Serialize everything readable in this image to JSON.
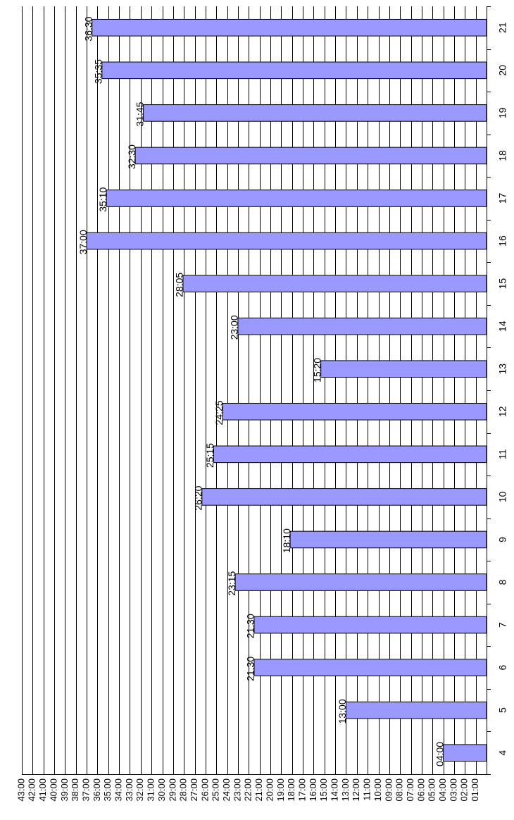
{
  "chart_data": {
    "type": "bar",
    "orientation": "vertical, page rotated 90 degrees clockwise",
    "title": "",
    "xlabel": "",
    "ylabel": "",
    "categories": [
      "4",
      "5",
      "6",
      "7",
      "8",
      "9",
      "10",
      "11",
      "12",
      "13",
      "14",
      "15",
      "16",
      "17",
      "18",
      "19",
      "20",
      "21"
    ],
    "values": [
      4.0,
      13.0,
      21.5,
      21.5,
      23.25,
      18.17,
      26.33,
      25.25,
      24.42,
      15.33,
      23.0,
      28.08,
      37.0,
      35.17,
      32.5,
      31.75,
      35.58,
      36.5
    ],
    "data_labels": [
      "04:00",
      "13:00",
      "21:30",
      "21:30",
      "23:15",
      "18:10",
      "26:20",
      "25:15",
      "24:25",
      "15:20",
      "23:00",
      "28:05",
      "37:00",
      "35:10",
      "32:30",
      "31:45",
      "35:35",
      "36:30"
    ],
    "y_ticks": [
      "01:00",
      "02:00",
      "03:00",
      "04:00",
      "05:00",
      "06:00",
      "07:00",
      "08:00",
      "09:00",
      "10:00",
      "11:00",
      "12:00",
      "13:00",
      "14:00",
      "15:00",
      "16:00",
      "17:00",
      "18:00",
      "19:00",
      "20:00",
      "21:00",
      "22:00",
      "23:00",
      "24:00",
      "25:00",
      "26:00",
      "27:00",
      "28:00",
      "29:00",
      "30:00",
      "31:00",
      "32:00",
      "33:00",
      "34:00",
      "35:00",
      "36:00",
      "37:00",
      "38:00",
      "39:00",
      "40:00",
      "41:00",
      "42:00",
      "43:00"
    ],
    "ylim": [
      0,
      43
    ],
    "grid": true,
    "legend": "none",
    "bar_color": "#9999ff",
    "bar_outline": "#000000"
  }
}
